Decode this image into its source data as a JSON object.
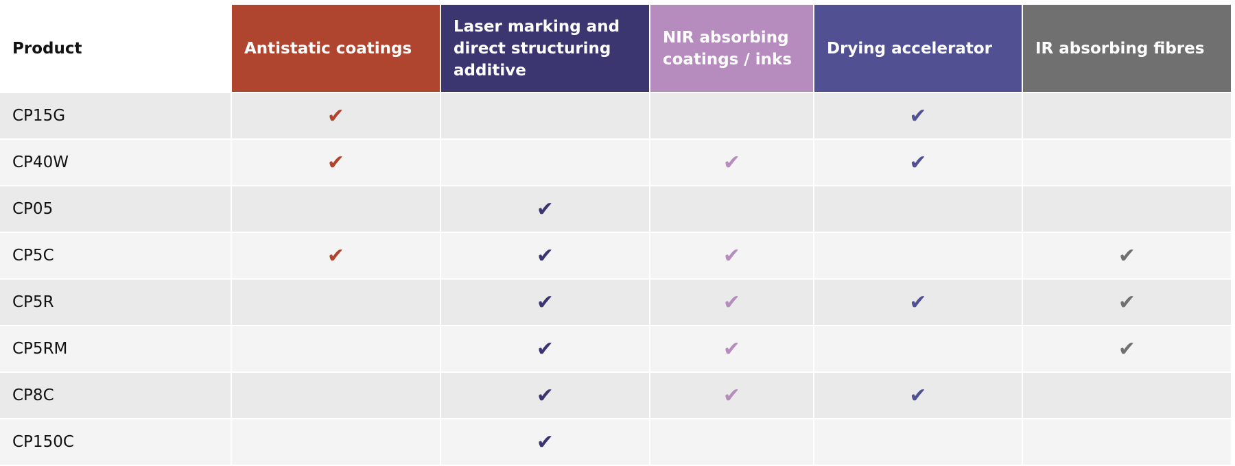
{
  "header": {
    "product_label": "Product",
    "columns": [
      {
        "label": "Antistatic coatings",
        "color": "#b0452f"
      },
      {
        "label": "Laser marking and direct structuring additive",
        "color": "#3b3670"
      },
      {
        "label": "NIR absorbing coatings / inks",
        "color": "#b68bbd"
      },
      {
        "label": "Drying accelerator",
        "color": "#505092"
      },
      {
        "label": "IR absorbing fibres",
        "color": "#717071"
      }
    ]
  },
  "check_icon": "check-mark-icon",
  "check_glyph": "✔",
  "rows": [
    {
      "product": "CP15G",
      "checks": [
        true,
        false,
        false,
        true,
        false
      ]
    },
    {
      "product": "CP40W",
      "checks": [
        true,
        false,
        true,
        true,
        false
      ]
    },
    {
      "product": "CP05",
      "checks": [
        false,
        true,
        false,
        false,
        false
      ]
    },
    {
      "product": "CP5C",
      "checks": [
        true,
        true,
        true,
        false,
        true
      ]
    },
    {
      "product": "CP5R",
      "checks": [
        false,
        true,
        true,
        true,
        true
      ]
    },
    {
      "product": "CP5RM",
      "checks": [
        false,
        true,
        true,
        false,
        true
      ]
    },
    {
      "product": "CP8C",
      "checks": [
        false,
        true,
        true,
        true,
        false
      ]
    },
    {
      "product": "CP150C",
      "checks": [
        false,
        true,
        false,
        false,
        false
      ]
    }
  ],
  "colors": {
    "row_odd": "#eaeaea",
    "row_even": "#f4f4f4",
    "gap": "#ffffff"
  }
}
